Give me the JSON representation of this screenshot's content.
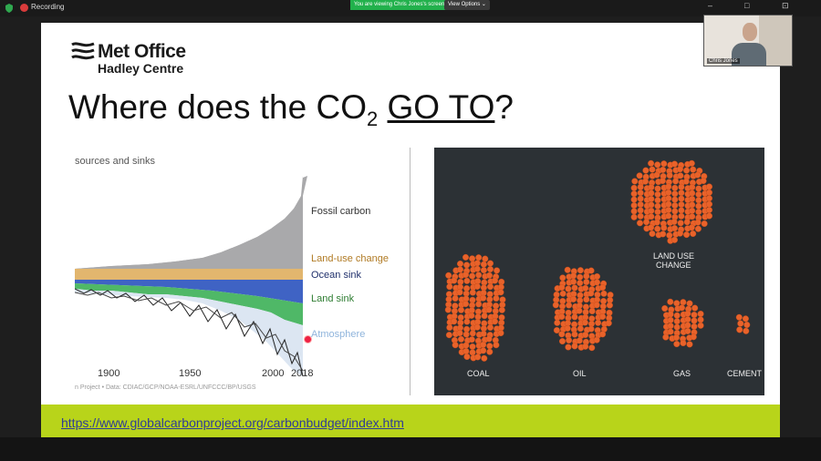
{
  "topbar": {
    "recording_label": "Recording",
    "viewing_banner": "You are viewing Chris Jones's screen",
    "view_options_label": "View Options ⌄",
    "minimize_glyph": "–",
    "maximize_glyph": "□",
    "fullscreen_glyph": "⊡"
  },
  "slide": {
    "logo_line1": "Met Office",
    "logo_line2": "Hadley Centre",
    "title_pre": "Where does the CO",
    "title_sub": "2",
    "title_link": "GO TO",
    "title_post": "?",
    "chart_heading": "sources and sinks",
    "source_note": "n Project  •  Data: CDIAC/GCP/NOAA-ESRL/UNFCCC/BP/USGS",
    "footer_link": "https://www.globalcarbonproject.org/carbonbudget/index.htm"
  },
  "chart_data": {
    "type": "area",
    "title": "sources and sinks",
    "x_ticks": [
      "1900",
      "1950",
      "2000",
      "2018"
    ],
    "series": [
      {
        "name": "Fossil carbon",
        "color": "#a9a9ab"
      },
      {
        "name": "Land-use change",
        "color": "#e2b66e"
      },
      {
        "name": "Ocean sink",
        "color": "#3f63c4"
      },
      {
        "name": "Land sink",
        "color": "#4fb867"
      },
      {
        "name": "Atmosphere",
        "color": "#dce6f2"
      }
    ],
    "label_colors": {
      "Fossil carbon": "#333333",
      "Land-use change": "#b07a23",
      "Ocean sink": "#1f2f6b",
      "Land sink": "#2e7d32",
      "Atmosphere": "#8fb4dc"
    }
  },
  "fuels": {
    "coal": "COAL",
    "oil": "OIL",
    "gas": "GAS",
    "cement": "CEMENT",
    "land_use_line1": "LAND USE",
    "land_use_line2": "CHANGE",
    "dot_color": "#e8622a"
  },
  "webcam": {
    "name": "Chris Jones"
  }
}
